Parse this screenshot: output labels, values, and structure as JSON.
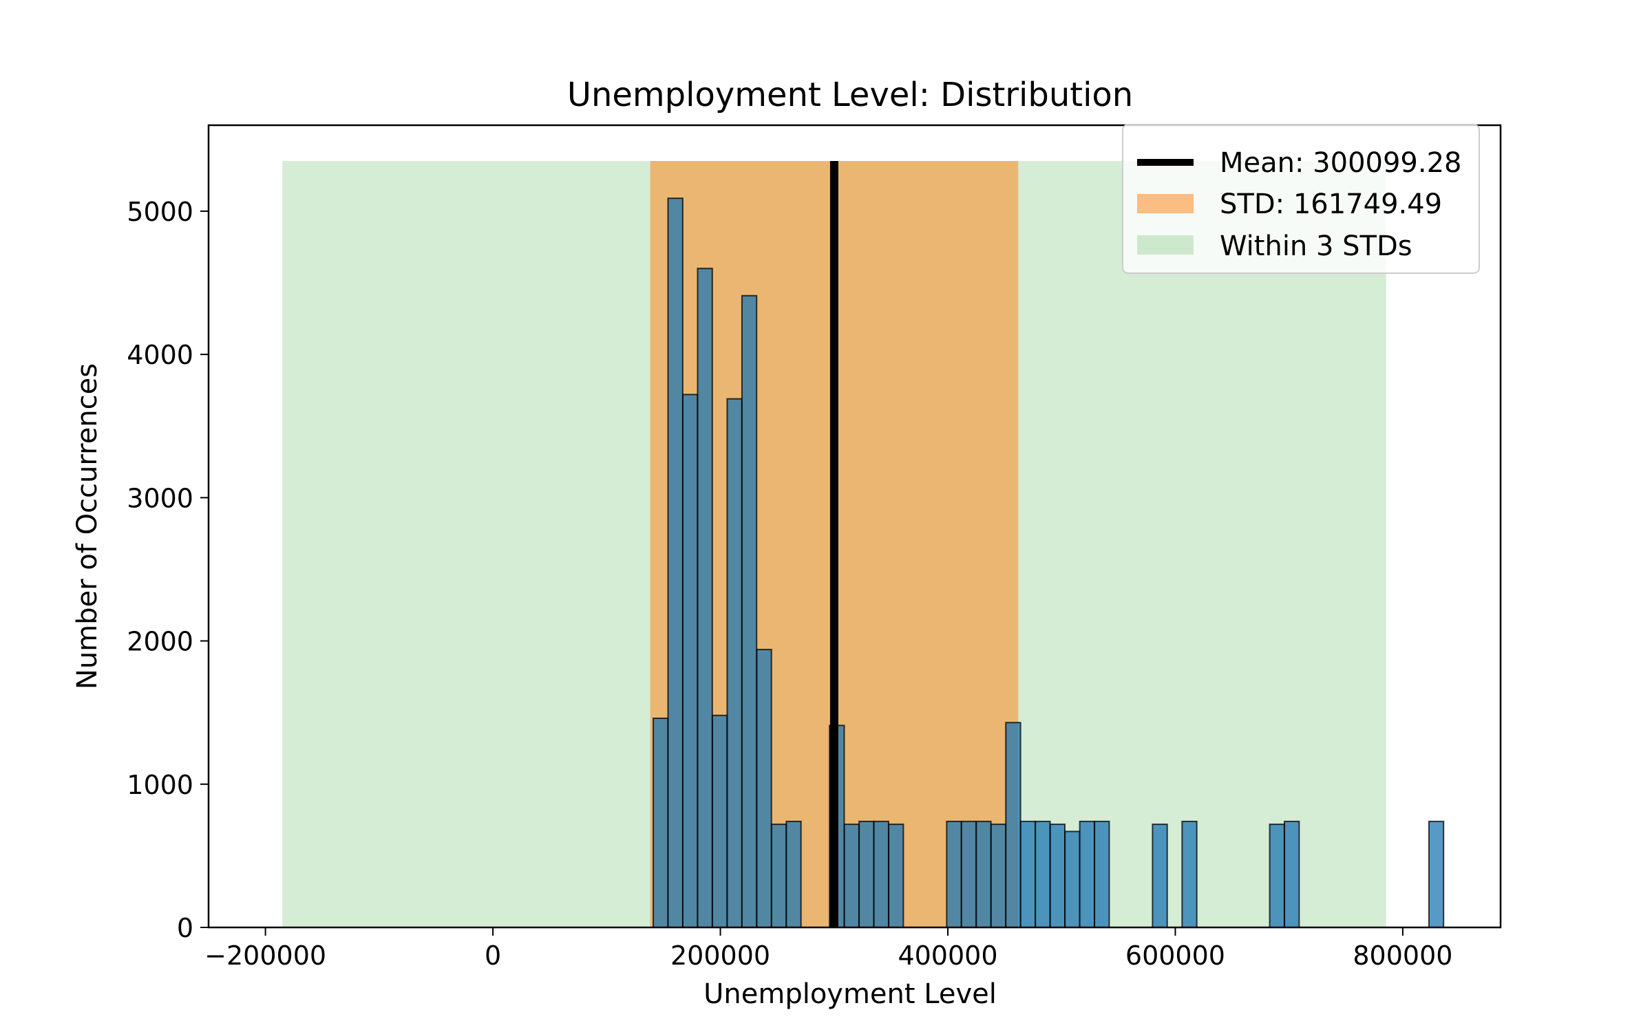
{
  "chart_data": {
    "type": "bar",
    "title": "Unemployment Level: Distribution",
    "xlabel": "Unemployment Level",
    "ylabel": "Number of Occurrences",
    "xlim": [
      -250000,
      886000
    ],
    "ylim": [
      0,
      5600
    ],
    "xticks": [
      -200000,
      0,
      200000,
      400000,
      600000,
      800000
    ],
    "xtick_labels": [
      "−200000",
      "0",
      "200000",
      "400000",
      "600000",
      "800000"
    ],
    "yticks": [
      0,
      1000,
      2000,
      3000,
      4000,
      5000
    ],
    "ytick_labels": [
      "0",
      "1000",
      "2000",
      "3000",
      "4000",
      "5000"
    ],
    "bin_width": 12900,
    "bins": [
      {
        "x0": 141000,
        "value": 1460
      },
      {
        "x0": 154000,
        "value": 5090
      },
      {
        "x0": 167000,
        "value": 3720
      },
      {
        "x0": 180000,
        "value": 4600
      },
      {
        "x0": 193000,
        "value": 1480
      },
      {
        "x0": 206000,
        "value": 3690
      },
      {
        "x0": 219000,
        "value": 4410
      },
      {
        "x0": 232000,
        "value": 1940
      },
      {
        "x0": 245000,
        "value": 720
      },
      {
        "x0": 258000,
        "value": 740
      },
      {
        "x0": 296000,
        "value": 1410
      },
      {
        "x0": 309000,
        "value": 720
      },
      {
        "x0": 322000,
        "value": 740
      },
      {
        "x0": 335000,
        "value": 740
      },
      {
        "x0": 348000,
        "value": 720
      },
      {
        "x0": 399000,
        "value": 740
      },
      {
        "x0": 412000,
        "value": 740
      },
      {
        "x0": 425000,
        "value": 740
      },
      {
        "x0": 438000,
        "value": 720
      },
      {
        "x0": 451000,
        "value": 1430
      },
      {
        "x0": 464000,
        "value": 740
      },
      {
        "x0": 477000,
        "value": 740
      },
      {
        "x0": 490000,
        "value": 720
      },
      {
        "x0": 503000,
        "value": 670
      },
      {
        "x0": 516000,
        "value": 740
      },
      {
        "x0": 529000,
        "value": 740
      },
      {
        "x0": 580000,
        "value": 720
      },
      {
        "x0": 606000,
        "value": 740
      },
      {
        "x0": 683000,
        "value": 720
      },
      {
        "x0": 696000,
        "value": 740
      },
      {
        "x0": 823000,
        "value": 740
      }
    ],
    "bar_color": "#1f77b4",
    "mean": {
      "value": 300099.28,
      "label": "Mean: 300099.28",
      "color": "#000000"
    },
    "std": {
      "value": 161749.49,
      "label": "STD: 161749.49",
      "color": "#ff7f0e"
    },
    "within3": {
      "label": "Within 3 STDs",
      "color": "#2ca02c",
      "lower": -185149.19,
      "upper": 785347.75
    },
    "band_top": 5350,
    "legend_position": "top-right"
  }
}
